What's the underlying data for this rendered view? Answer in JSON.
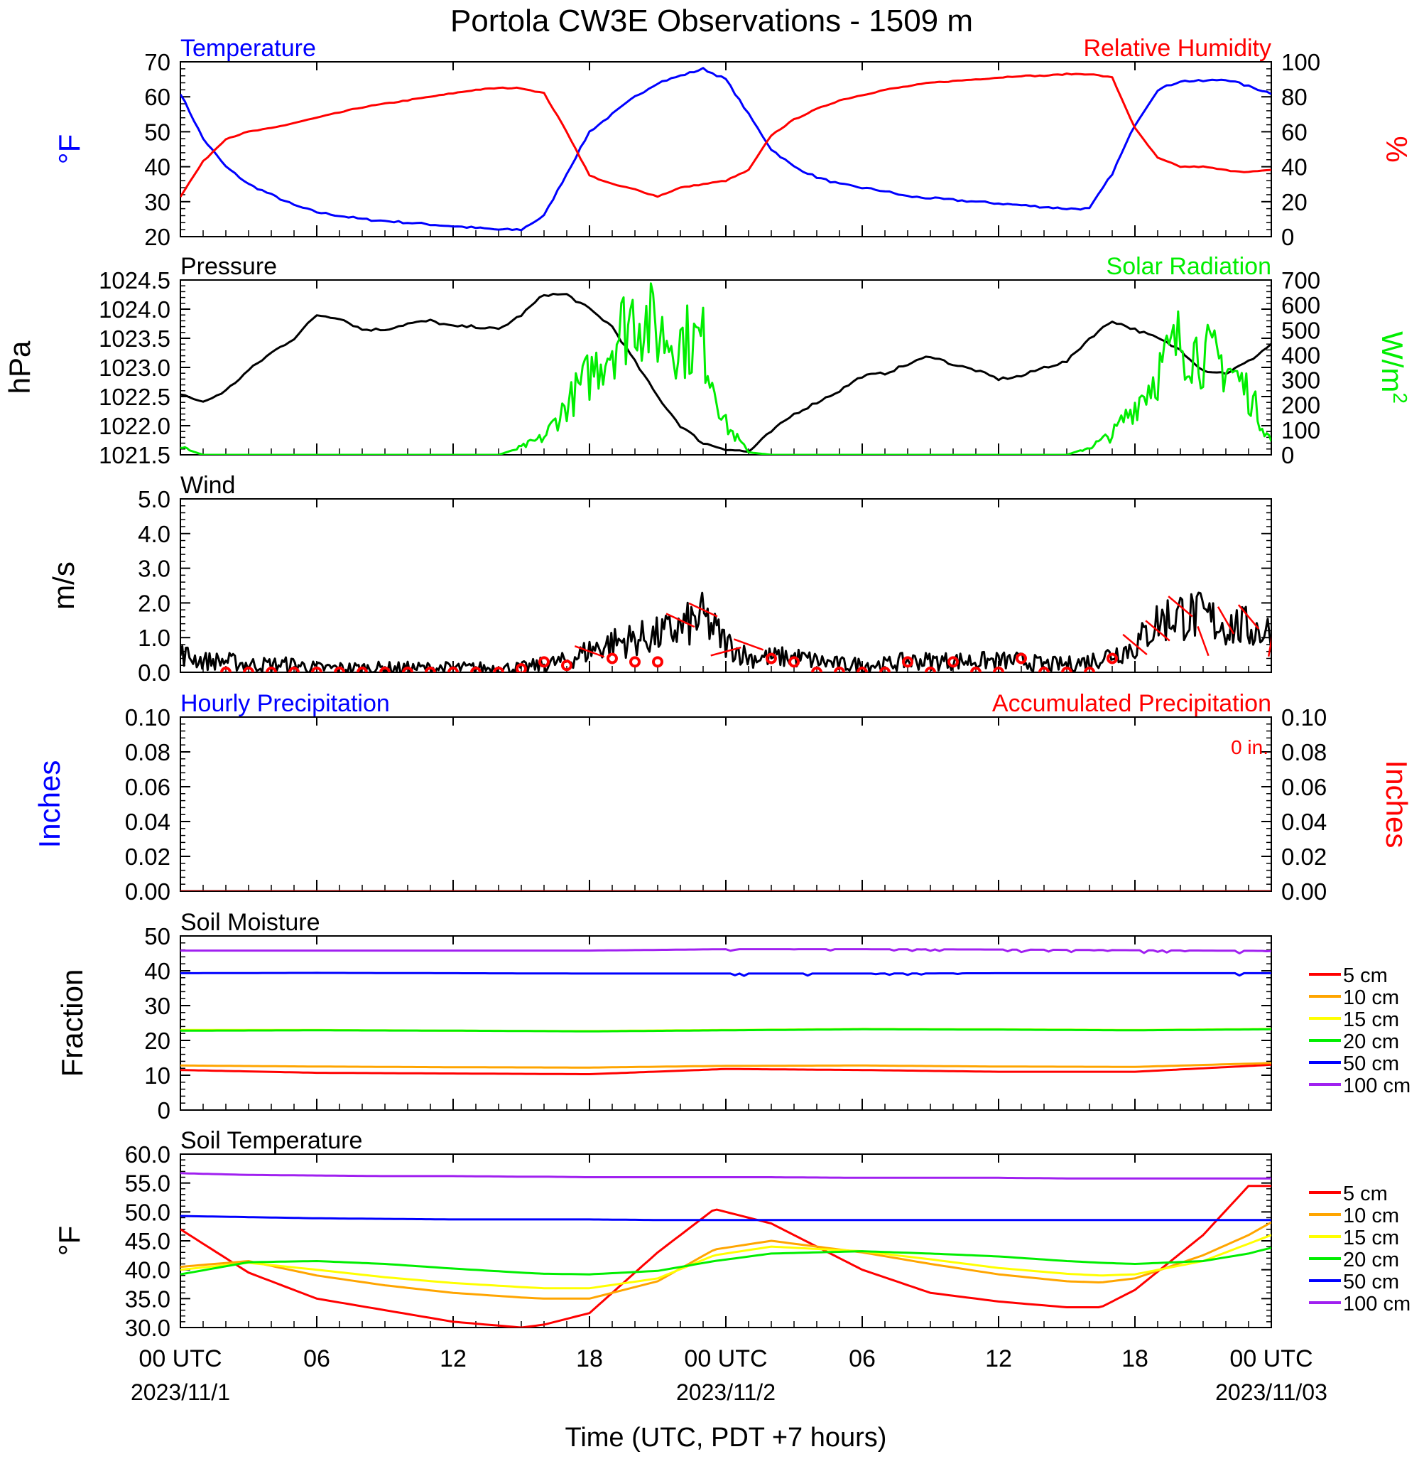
{
  "figure": {
    "title": "Portola CW3E Observations - 1509 m",
    "xlabel": "Time (UTC, PDT +7 hours)",
    "time_ticks": [
      {
        "hour": 0,
        "label": "00 UTC",
        "date": "2023/11/1"
      },
      {
        "hour": 6,
        "label": "06",
        "date": ""
      },
      {
        "hour": 12,
        "label": "12",
        "date": ""
      },
      {
        "hour": 18,
        "label": "18",
        "date": ""
      },
      {
        "hour": 24,
        "label": "00 UTC",
        "date": "2023/11/2"
      },
      {
        "hour": 30,
        "label": "06",
        "date": ""
      },
      {
        "hour": 36,
        "label": "12",
        "date": ""
      },
      {
        "hour": 42,
        "label": "18",
        "date": ""
      },
      {
        "hour": 48,
        "label": "00 UTC",
        "date": "2023/11/03"
      }
    ],
    "colors": {
      "blue": "#0000ff",
      "red": "#ff0000",
      "green": "#00ee00",
      "black": "#000000",
      "orange": "#ffa500",
      "yellow": "#ffff00",
      "purple": "#a020f0",
      "darkred": "#8b0000"
    }
  },
  "chart_data": [
    {
      "type": "line",
      "panel": "temperature-humidity",
      "left_title": "Temperature",
      "right_title": "Relative Humidity",
      "ylabel_left": "°F",
      "ylabel_right": "%",
      "ylim_left": [
        20,
        70
      ],
      "ylim_right": [
        0,
        100
      ],
      "yticks_left": [
        "20",
        "30",
        "40",
        "50",
        "60",
        "70"
      ],
      "yticks_right": [
        "0",
        "20",
        "40",
        "60",
        "80",
        "100"
      ],
      "x_hours": [
        0,
        1,
        2,
        3,
        4,
        5,
        6,
        7,
        8,
        9,
        10,
        11,
        12,
        13,
        14,
        15,
        16,
        17,
        18,
        19,
        20,
        21,
        22,
        23,
        24,
        25,
        26,
        27,
        28,
        29,
        30,
        31,
        32,
        33,
        34,
        35,
        36,
        37,
        38,
        39,
        40,
        41,
        42,
        43,
        44,
        45,
        46,
        47,
        48
      ],
      "series": [
        {
          "name": "Temperature",
          "axis": "left",
          "color": "#0000ff",
          "values": [
            61,
            48,
            40,
            35,
            32,
            29,
            27,
            26,
            25,
            24.5,
            24,
            23.5,
            23,
            22.5,
            22,
            22,
            26,
            38,
            50,
            55,
            60,
            64,
            66,
            68,
            65,
            55,
            45,
            40,
            37,
            35,
            34,
            33,
            31.5,
            31,
            30.5,
            30,
            29.5,
            29,
            28.5,
            28,
            28,
            38,
            52,
            62,
            64.5,
            64.5,
            65,
            63,
            61
          ]
        },
        {
          "name": "Relative Humidity",
          "axis": "right",
          "color": "#ff0000",
          "values": [
            23,
            43,
            56,
            60,
            62,
            65,
            68,
            71,
            74,
            76,
            78,
            80,
            82,
            84,
            85,
            85,
            82,
            60,
            35,
            30,
            27,
            23,
            28,
            30,
            32,
            38,
            58,
            67,
            73,
            78,
            81,
            84,
            86,
            88,
            89,
            90,
            91,
            92,
            92,
            93,
            93,
            91,
            62,
            45,
            40,
            40,
            38,
            37,
            38
          ]
        }
      ]
    },
    {
      "type": "line",
      "panel": "pressure-solar",
      "left_title": "Pressure",
      "right_title": "Solar Radiation",
      "ylabel_left": "hPa",
      "ylabel_right": "W/m",
      "ylabel_right_sup": "2",
      "ylim_left": [
        1021.5,
        1024.5
      ],
      "ylim_right": [
        0,
        700
      ],
      "yticks_left": [
        "1021.5",
        "1022.0",
        "1022.5",
        "1023.0",
        "1023.5",
        "1024.0",
        "1024.5"
      ],
      "yticks_right": [
        "0",
        "100",
        "200",
        "300",
        "400",
        "500",
        "600",
        "700"
      ],
      "x_hours": [
        0,
        1,
        2,
        3,
        4,
        5,
        6,
        7,
        8,
        9,
        10,
        11,
        12,
        13,
        14,
        15,
        16,
        17,
        18,
        19,
        20,
        21,
        22,
        23,
        24,
        25,
        26,
        27,
        28,
        29,
        30,
        31,
        32,
        33,
        34,
        35,
        36,
        37,
        38,
        39,
        40,
        41,
        42,
        43,
        44,
        45,
        46,
        47,
        48
      ],
      "series": [
        {
          "name": "Pressure",
          "axis": "left",
          "color": "#000000",
          "values": [
            1022.55,
            1022.4,
            1022.6,
            1022.95,
            1023.25,
            1023.5,
            1023.9,
            1023.85,
            1023.65,
            1023.65,
            1023.75,
            1023.8,
            1023.7,
            1023.7,
            1023.65,
            1023.9,
            1024.25,
            1024.25,
            1024.0,
            1023.7,
            1023.1,
            1022.5,
            1022.0,
            1021.7,
            1021.6,
            1021.55,
            1021.9,
            1022.2,
            1022.4,
            1022.6,
            1022.85,
            1022.9,
            1023.05,
            1023.2,
            1023.05,
            1022.95,
            1022.8,
            1022.85,
            1023.0,
            1023.1,
            1023.5,
            1023.8,
            1023.65,
            1023.5,
            1023.3,
            1022.95,
            1022.9,
            1023.1,
            1023.4
          ]
        },
        {
          "name": "Solar Radiation",
          "axis": "right",
          "color": "#00ee00",
          "values": [
            30,
            0,
            0,
            0,
            0,
            0,
            0,
            0,
            0,
            0,
            0,
            0,
            0,
            0,
            0,
            30,
            70,
            200,
            320,
            450,
            580,
            490,
            460,
            450,
            120,
            10,
            0,
            0,
            0,
            0,
            0,
            0,
            0,
            0,
            0,
            0,
            0,
            0,
            0,
            0,
            30,
            80,
            200,
            330,
            460,
            400,
            360,
            250,
            50
          ]
        }
      ]
    },
    {
      "type": "line",
      "panel": "wind",
      "left_title": "Wind",
      "ylabel_left": "m/s",
      "ylim_left": [
        0,
        5
      ],
      "yticks_left": [
        "0.0",
        "1.0",
        "2.0",
        "3.0",
        "4.0",
        "5.0"
      ],
      "x_hours": [
        0,
        1,
        2,
        3,
        4,
        5,
        6,
        7,
        8,
        9,
        10,
        11,
        12,
        13,
        14,
        15,
        16,
        17,
        18,
        19,
        20,
        21,
        22,
        23,
        24,
        25,
        26,
        27,
        28,
        29,
        30,
        31,
        32,
        33,
        34,
        35,
        36,
        37,
        38,
        39,
        40,
        41,
        42,
        43,
        44,
        45,
        46,
        47,
        48
      ],
      "series": [
        {
          "name": "Wind speed",
          "axis": "left",
          "color": "#000000",
          "values": [
            0.5,
            0.3,
            0.3,
            0.2,
            0.2,
            0.2,
            0.1,
            0.1,
            0.1,
            0.1,
            0.1,
            0.1,
            0.1,
            0.1,
            0.1,
            0.1,
            0.2,
            0.3,
            0.6,
            0.8,
            0.9,
            1.0,
            1.2,
            1.5,
            0.8,
            0.4,
            0.4,
            0.4,
            0.3,
            0.2,
            0.2,
            0.2,
            0.3,
            0.3,
            0.3,
            0.3,
            0.3,
            0.3,
            0.2,
            0.2,
            0.3,
            0.5,
            0.7,
            1.4,
            1.6,
            1.5,
            1.3,
            1.2,
            1.1
          ]
        }
      ],
      "hourly_speed": [
        0,
        0,
        0,
        0,
        0,
        0,
        0,
        0,
        0,
        0,
        0,
        0,
        0,
        0,
        0,
        0.1,
        0.3,
        0.2,
        0.6,
        0.4,
        0.3,
        0.3,
        1.5,
        1.8,
        0.6,
        0.8,
        0.4,
        0.3,
        0,
        0,
        0,
        0,
        0.3,
        0,
        0.3,
        0,
        0,
        0.4,
        0,
        0,
        0,
        0.4,
        0.8,
        1.2,
        1.9,
        0.9,
        1.5,
        1.6,
        0.9
      ],
      "hourly_direction_deg": [
        0,
        0,
        0,
        0,
        0,
        0,
        0,
        0,
        0,
        0,
        0,
        0,
        0,
        0,
        0,
        0,
        0,
        0,
        250,
        250,
        250,
        250,
        245,
        245,
        285,
        250,
        250,
        0,
        0,
        0,
        0,
        0,
        0,
        0,
        0,
        0,
        0,
        0,
        0,
        0,
        0,
        0,
        230,
        230,
        230,
        200,
        210,
        220,
        170
      ]
    },
    {
      "type": "line",
      "panel": "precipitation",
      "left_title": "Hourly Precipitation",
      "right_title": "Accumulated Precipitation",
      "annotation": "0 in.",
      "ylabel_left": "Inches",
      "ylabel_right": "Inches",
      "ylim_left": [
        0,
        0.1
      ],
      "ylim_right": [
        0,
        0.1
      ],
      "yticks_left": [
        "0.00",
        "0.02",
        "0.04",
        "0.06",
        "0.08",
        "0.10"
      ],
      "yticks_right": [
        "0.00",
        "0.02",
        "0.04",
        "0.06",
        "0.08",
        "0.10"
      ],
      "x_hours": [
        0,
        48
      ],
      "series": [
        {
          "name": "Hourly Precipitation",
          "axis": "left",
          "color": "#0000ff",
          "values": [
            0,
            0
          ]
        },
        {
          "name": "Accumulated Precipitation",
          "axis": "right",
          "color": "#8b0000",
          "values": [
            0,
            0
          ]
        }
      ]
    },
    {
      "type": "line",
      "panel": "soil-moisture",
      "left_title": "Soil Moisture",
      "ylabel_left": "Fraction",
      "ylim_left": [
        0,
        50
      ],
      "yticks_left": [
        "0",
        "10",
        "20",
        "30",
        "40",
        "50"
      ],
      "x_hours": [
        0,
        6,
        12,
        18,
        24,
        30,
        36,
        42,
        48
      ],
      "legend": [
        "5 cm",
        "10 cm",
        "15 cm",
        "20 cm",
        "50 cm",
        "100 cm"
      ],
      "series": [
        {
          "name": "5 cm",
          "color": "#ff0000",
          "values": [
            11.5,
            10.7,
            10.5,
            10.3,
            11.8,
            11.5,
            11.0,
            11.0,
            13.0
          ]
        },
        {
          "name": "10 cm",
          "color": "#ffa500",
          "values": [
            12.8,
            12.5,
            12.3,
            12.2,
            12.7,
            12.8,
            12.5,
            12.4,
            13.5
          ]
        },
        {
          "name": "15 cm",
          "color": "#ffff00",
          "values": [
            23.0,
            23.0,
            22.8,
            22.7,
            23.0,
            23.3,
            23.2,
            23.0,
            23.3
          ]
        },
        {
          "name": "20 cm",
          "color": "#00ee00",
          "values": [
            22.8,
            22.9,
            22.8,
            22.6,
            22.9,
            23.2,
            23.1,
            22.9,
            23.2
          ]
        },
        {
          "name": "50 cm",
          "color": "#0000ff",
          "values": [
            39.3,
            39.4,
            39.3,
            39.2,
            39.2,
            39.2,
            39.3,
            39.3,
            39.3
          ]
        },
        {
          "name": "100 cm",
          "color": "#a020f0",
          "values": [
            45.8,
            45.8,
            45.8,
            45.8,
            46.2,
            46.2,
            46.1,
            45.9,
            45.7
          ]
        }
      ]
    },
    {
      "type": "line",
      "panel": "soil-temperature",
      "left_title": "Soil Temperature",
      "ylabel_left": "°F",
      "ylim_left": [
        30,
        60
      ],
      "yticks_left": [
        "30.0",
        "35.0",
        "40.0",
        "45.0",
        "50.0",
        "55.0",
        "60.0"
      ],
      "x_hours": [
        0,
        3,
        6,
        9,
        12,
        15,
        16,
        18,
        21,
        23.5,
        26,
        30,
        33,
        36,
        39,
        40.5,
        42,
        45,
        47,
        48
      ],
      "legend": [
        "5 cm",
        "10 cm",
        "15 cm",
        "20 cm",
        "50 cm",
        "100 cm"
      ],
      "series": [
        {
          "name": "5 cm",
          "color": "#ff0000",
          "values": [
            47,
            39.5,
            35,
            33,
            31,
            30,
            30.5,
            32.5,
            43,
            50.5,
            48,
            40,
            36,
            34.5,
            33.5,
            33.5,
            36.5,
            46,
            54.5,
            54.5
          ]
        },
        {
          "name": "10 cm",
          "color": "#ffa500",
          "values": [
            40.5,
            41.5,
            39,
            37.3,
            36,
            35.2,
            35,
            35,
            38,
            43.5,
            45,
            43,
            41,
            39.2,
            38,
            37.8,
            38.5,
            42.5,
            46,
            48.2
          ]
        },
        {
          "name": "15 cm",
          "color": "#ffff00",
          "values": [
            40,
            41.2,
            40,
            38.7,
            37.7,
            37,
            36.8,
            36.8,
            38.5,
            42.5,
            44,
            43.2,
            41.8,
            40.3,
            39.3,
            39,
            39.2,
            41.5,
            44.5,
            46
          ]
        },
        {
          "name": "20 cm",
          "color": "#00ee00",
          "values": [
            39.2,
            41.3,
            41.5,
            41,
            40.2,
            39.5,
            39.3,
            39.2,
            39.8,
            41.5,
            42.8,
            43.2,
            42.8,
            42.3,
            41.5,
            41.2,
            41,
            41.5,
            42.8,
            43.8
          ]
        },
        {
          "name": "50 cm",
          "color": "#0000ff",
          "values": [
            49.3,
            49.1,
            48.9,
            48.8,
            48.7,
            48.7,
            48.7,
            48.7,
            48.6,
            48.6,
            48.6,
            48.6,
            48.6,
            48.6,
            48.6,
            48.6,
            48.6,
            48.6,
            48.6,
            48.6
          ]
        },
        {
          "name": "100 cm",
          "color": "#a020f0",
          "values": [
            56.7,
            56.4,
            56.3,
            56.2,
            56.2,
            56.1,
            56.1,
            56.0,
            56.0,
            56.0,
            56.0,
            55.9,
            55.9,
            55.9,
            55.8,
            55.8,
            55.8,
            55.8,
            55.8,
            55.8
          ]
        }
      ]
    }
  ]
}
